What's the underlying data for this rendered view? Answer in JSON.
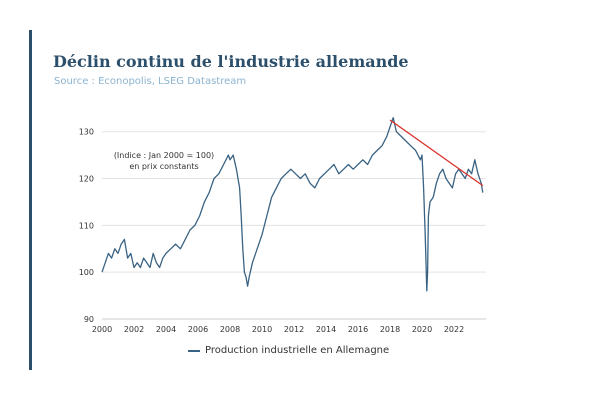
{
  "title": "Déclin continu de l'industrie allemande",
  "subtitle": "Source : Econopolis, LSEG Datastream",
  "colors": {
    "accent": "#2c4f6b",
    "line": "#3a6383",
    "trend": "#d9332e",
    "subtitle": "#8bb4d1",
    "grid": "#e3e3e3"
  },
  "chart_data": {
    "type": "line",
    "title": "Déclin continu de l'industrie allemande",
    "annotation": [
      "(Indice : Jan 2000 = 100)",
      "en prix constants"
    ],
    "xlim": [
      2000,
      2024
    ],
    "ylim": [
      90,
      132.5
    ],
    "x_ticks": [
      2000,
      2002,
      2004,
      2006,
      2008,
      2010,
      2012,
      2014,
      2016,
      2018,
      2020,
      2022
    ],
    "y_ticks": [
      90,
      100,
      110,
      120,
      130
    ],
    "grid": true,
    "legend": "bottom",
    "series": [
      {
        "name": "Production industrielle en Allemagne",
        "x": [
          2000.0,
          2000.2,
          2000.4,
          2000.6,
          2000.8,
          2001.0,
          2001.2,
          2001.4,
          2001.6,
          2001.8,
          2002.0,
          2002.2,
          2002.4,
          2002.6,
          2002.8,
          2003.0,
          2003.2,
          2003.4,
          2003.6,
          2003.8,
          2004.0,
          2004.3,
          2004.6,
          2004.9,
          2005.2,
          2005.5,
          2005.8,
          2006.1,
          2006.4,
          2006.7,
          2007.0,
          2007.3,
          2007.6,
          2007.9,
          2008.0,
          2008.2,
          2008.4,
          2008.6,
          2008.7,
          2008.8,
          2008.9,
          2009.0,
          2009.1,
          2009.2,
          2009.4,
          2009.6,
          2009.8,
          2010.0,
          2010.3,
          2010.6,
          2010.9,
          2011.2,
          2011.5,
          2011.8,
          2012.1,
          2012.4,
          2012.7,
          2013.0,
          2013.3,
          2013.6,
          2013.9,
          2014.2,
          2014.5,
          2014.8,
          2015.1,
          2015.4,
          2015.7,
          2016.0,
          2016.3,
          2016.6,
          2016.9,
          2017.2,
          2017.5,
          2017.8,
          2017.9,
          2018.0,
          2018.2,
          2018.4,
          2018.7,
          2019.0,
          2019.3,
          2019.6,
          2019.9,
          2020.0,
          2020.1,
          2020.2,
          2020.3,
          2020.35,
          2020.4,
          2020.5,
          2020.7,
          2020.9,
          2021.1,
          2021.3,
          2021.5,
          2021.7,
          2021.9,
          2022.1,
          2022.3,
          2022.5,
          2022.7,
          2022.9,
          2023.1,
          2023.3,
          2023.5,
          2023.7,
          2023.8
        ],
        "y": [
          100,
          102,
          104,
          103,
          105,
          104,
          106,
          107,
          103,
          104,
          101,
          102,
          101,
          103,
          102,
          101,
          104,
          102,
          101,
          103,
          104,
          105,
          106,
          105,
          107,
          109,
          110,
          112,
          115,
          117,
          120,
          121,
          123,
          125,
          124,
          125,
          122,
          118,
          112,
          105,
          100,
          99,
          97,
          99,
          102,
          104,
          106,
          108,
          112,
          116,
          118,
          120,
          121,
          122,
          121,
          120,
          121,
          119,
          118,
          120,
          121,
          122,
          123,
          121,
          122,
          123,
          122,
          123,
          124,
          123,
          125,
          126,
          127,
          129,
          130,
          131,
          133,
          130,
          129,
          128,
          127,
          126,
          124,
          125,
          118,
          108,
          96,
          100,
          112,
          115,
          116,
          119,
          121,
          122,
          120,
          119,
          118,
          121,
          122,
          121,
          120,
          122,
          121,
          124,
          121,
          119,
          117
        ],
        "color": "#3a6383"
      },
      {
        "name": "",
        "type": "trend",
        "x": [
          2018.0,
          2023.8
        ],
        "y": [
          132.5,
          118.5
        ],
        "color": "#d9332e"
      }
    ]
  },
  "legend": {
    "label": "Production industrielle en Allemagne"
  }
}
